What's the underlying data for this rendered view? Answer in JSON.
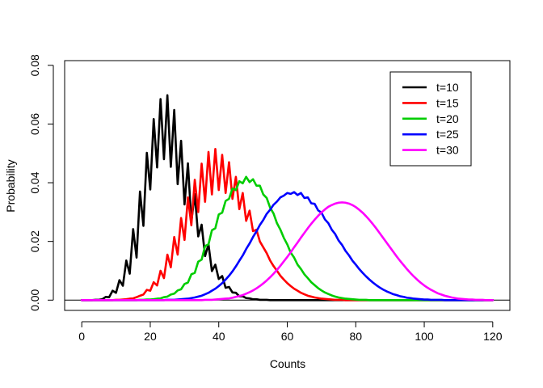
{
  "chart_data": {
    "type": "line",
    "title": "",
    "xlabel": "Counts",
    "ylabel": "Probability",
    "xlim": [
      -5,
      125
    ],
    "ylim": [
      -0.0035,
      0.0816
    ],
    "xticks": [
      0,
      20,
      40,
      60,
      80,
      100,
      120
    ],
    "yticks": [
      0.0,
      0.02,
      0.04,
      0.06,
      0.08
    ],
    "xtick_labels": [
      "0",
      "20",
      "40",
      "60",
      "80",
      "100",
      "120"
    ],
    "ytick_labels": [
      "0.00",
      "0.02",
      "0.04",
      "0.06",
      "0.08"
    ],
    "grid": false,
    "legend_position": "top-right",
    "hline_y": 0,
    "series": [
      {
        "name": "t=10",
        "color": "#000000",
        "x": [
          0,
          1,
          2,
          3,
          4,
          5,
          6,
          7,
          8,
          9,
          10,
          11,
          12,
          13,
          14,
          15,
          16,
          17,
          18,
          19,
          20,
          21,
          22,
          23,
          24,
          25,
          26,
          27,
          28,
          29,
          30,
          31,
          32,
          33,
          34,
          35,
          36,
          37,
          38,
          39,
          40,
          41,
          42,
          43,
          44,
          45,
          46,
          47,
          48,
          49,
          50,
          51,
          52,
          53,
          54,
          55,
          56,
          57,
          58,
          59,
          60,
          61,
          62,
          63,
          64,
          65,
          66,
          67,
          68,
          69,
          70,
          71,
          72,
          73,
          74,
          75,
          76,
          77,
          78,
          79,
          80,
          81,
          82,
          83,
          84,
          85,
          86,
          87,
          88,
          89,
          90,
          91,
          92,
          93,
          94,
          95,
          96,
          97,
          98,
          99,
          100,
          101,
          102,
          103,
          104,
          105,
          106,
          107,
          108,
          109,
          110,
          111,
          112,
          113,
          114,
          115,
          116,
          117,
          118,
          119,
          120
        ],
        "y": [
          0.0,
          0.0,
          0.0,
          0.0,
          0.0001,
          0.0001,
          0.0003,
          0.0011,
          0.001,
          0.0032,
          0.0025,
          0.0068,
          0.0049,
          0.0135,
          0.009,
          0.0242,
          0.0145,
          0.037,
          0.0253,
          0.0502,
          0.0377,
          0.0617,
          0.0452,
          0.0685,
          0.048,
          0.0698,
          0.0454,
          0.0648,
          0.0395,
          0.0543,
          0.0326,
          0.0466,
          0.0268,
          0.0361,
          0.0217,
          0.0257,
          0.015,
          0.019,
          0.0099,
          0.0121,
          0.0072,
          0.0082,
          0.0042,
          0.0045,
          0.0026,
          0.0025,
          0.0013,
          0.0013,
          0.0007,
          0.0006,
          0.0003,
          0.0003,
          0.0001,
          0.0001,
          0.0001,
          0.0,
          0.0,
          0.0,
          0.0,
          0.0,
          0.0,
          0.0,
          0.0,
          0.0,
          0.0,
          0.0,
          0.0,
          0.0,
          0.0,
          0.0,
          0.0,
          0.0,
          0.0,
          0.0,
          0.0,
          0.0,
          0.0,
          0.0,
          0.0,
          0.0,
          0.0,
          0.0,
          0.0,
          0.0,
          0.0,
          0.0,
          0.0,
          0.0,
          0.0,
          0.0,
          0.0,
          0.0,
          0.0,
          0.0,
          0.0,
          0.0,
          0.0,
          0.0,
          0.0,
          0.0,
          0.0,
          0.0,
          0.0,
          0.0,
          0.0,
          0.0,
          0.0,
          0.0,
          0.0,
          0.0,
          0.0,
          0.0,
          0.0,
          0.0,
          0.0,
          0.0,
          0.0,
          0.0,
          0.0,
          0.0,
          0.0
        ]
      },
      {
        "name": "t=15",
        "color": "#ff0000",
        "x": [
          0,
          1,
          2,
          3,
          4,
          5,
          6,
          7,
          8,
          9,
          10,
          11,
          12,
          13,
          14,
          15,
          16,
          17,
          18,
          19,
          20,
          21,
          22,
          23,
          24,
          25,
          26,
          27,
          28,
          29,
          30,
          31,
          32,
          33,
          34,
          35,
          36,
          37,
          38,
          39,
          40,
          41,
          42,
          43,
          44,
          45,
          46,
          47,
          48,
          49,
          50,
          51,
          52,
          53,
          54,
          55,
          56,
          57,
          58,
          59,
          60,
          61,
          62,
          63,
          64,
          65,
          66,
          67,
          68,
          69,
          70,
          71,
          72,
          73,
          74,
          75,
          76,
          77,
          78,
          79,
          80,
          81,
          82,
          83,
          84,
          85,
          86,
          87,
          88,
          89,
          90,
          91,
          92,
          93,
          94,
          95,
          96,
          97,
          98,
          99,
          100,
          101,
          102,
          103,
          104,
          105,
          106,
          107,
          108,
          109,
          110,
          111,
          112,
          113,
          114,
          115,
          116,
          117,
          118,
          119,
          120
        ],
        "y": [
          0.0,
          0.0,
          0.0,
          0.0,
          0.0,
          0.0,
          0.0,
          0.0,
          0.0,
          0.0,
          0.0001,
          0.0001,
          0.0002,
          0.0003,
          0.0005,
          0.0006,
          0.001,
          0.0015,
          0.0019,
          0.0035,
          0.0032,
          0.0061,
          0.005,
          0.01,
          0.0075,
          0.0155,
          0.0112,
          0.0215,
          0.0155,
          0.028,
          0.0205,
          0.035,
          0.0255,
          0.041,
          0.03,
          0.0465,
          0.0335,
          0.0505,
          0.036,
          0.0515,
          0.0375,
          0.0495,
          0.0365,
          0.047,
          0.0345,
          0.042,
          0.031,
          0.0365,
          0.027,
          0.0305,
          0.0235,
          0.024,
          0.02,
          0.018,
          0.016,
          0.0135,
          0.0116,
          0.01,
          0.0083,
          0.007,
          0.0058,
          0.0048,
          0.0039,
          0.0032,
          0.0025,
          0.002,
          0.0015,
          0.0012,
          0.0009,
          0.0007,
          0.0005,
          0.0004,
          0.0003,
          0.0002,
          0.0001,
          0.0001,
          0.0001,
          0.0,
          0.0,
          0.0,
          0.0,
          0.0,
          0.0,
          0.0,
          0.0,
          0.0,
          0.0,
          0.0,
          0.0,
          0.0,
          0.0,
          0.0,
          0.0,
          0.0,
          0.0,
          0.0,
          0.0,
          0.0,
          0.0,
          0.0,
          0.0,
          0.0,
          0.0,
          0.0,
          0.0,
          0.0,
          0.0,
          0.0,
          0.0,
          0.0,
          0.0,
          0.0,
          0.0,
          0.0,
          0.0,
          0.0,
          0.0,
          0.0,
          0.0,
          0.0,
          0.0
        ]
      },
      {
        "name": "t=20",
        "color": "#00cd00",
        "x": [
          0,
          1,
          2,
          3,
          4,
          5,
          6,
          7,
          8,
          9,
          10,
          11,
          12,
          13,
          14,
          15,
          16,
          17,
          18,
          19,
          20,
          21,
          22,
          23,
          24,
          25,
          26,
          27,
          28,
          29,
          30,
          31,
          32,
          33,
          34,
          35,
          36,
          37,
          38,
          39,
          40,
          41,
          42,
          43,
          44,
          45,
          46,
          47,
          48,
          49,
          50,
          51,
          52,
          53,
          54,
          55,
          56,
          57,
          58,
          59,
          60,
          61,
          62,
          63,
          64,
          65,
          66,
          67,
          68,
          69,
          70,
          71,
          72,
          73,
          74,
          75,
          76,
          77,
          78,
          79,
          80,
          81,
          82,
          83,
          84,
          85,
          86,
          87,
          88,
          89,
          90,
          91,
          92,
          93,
          94,
          95,
          96,
          97,
          98,
          99,
          100,
          101,
          102,
          103,
          104,
          105,
          106,
          107,
          108,
          109,
          110,
          111,
          112,
          113,
          114,
          115,
          116,
          117,
          118,
          119,
          120
        ],
        "y": [
          0.0,
          0.0,
          0.0,
          0.0,
          0.0,
          0.0,
          0.0,
          0.0,
          0.0,
          0.0,
          0.0,
          0.0,
          0.0,
          0.0,
          0.0,
          0.0,
          0.0,
          0.0001,
          0.0001,
          0.0002,
          0.0002,
          0.0003,
          0.0005,
          0.0006,
          0.001,
          0.0012,
          0.0019,
          0.0022,
          0.0033,
          0.0037,
          0.0055,
          0.006,
          0.0088,
          0.0093,
          0.0131,
          0.0138,
          0.0184,
          0.019,
          0.0238,
          0.0245,
          0.0292,
          0.0298,
          0.0338,
          0.0345,
          0.038,
          0.0375,
          0.0405,
          0.0398,
          0.042,
          0.0402,
          0.0412,
          0.039,
          0.039,
          0.036,
          0.0348,
          0.0315,
          0.0295,
          0.0262,
          0.024,
          0.0212,
          0.019,
          0.0162,
          0.0145,
          0.0121,
          0.0106,
          0.0088,
          0.0075,
          0.0061,
          0.0051,
          0.0041,
          0.0033,
          0.0026,
          0.0021,
          0.0016,
          0.0012,
          0.0009,
          0.0007,
          0.0005,
          0.0004,
          0.0003,
          0.0002,
          0.0001,
          0.0001,
          0.0001,
          0.0,
          0.0,
          0.0,
          0.0,
          0.0,
          0.0,
          0.0,
          0.0,
          0.0,
          0.0,
          0.0,
          0.0,
          0.0,
          0.0,
          0.0,
          0.0,
          0.0,
          0.0,
          0.0,
          0.0,
          0.0,
          0.0,
          0.0,
          0.0,
          0.0,
          0.0,
          0.0,
          0.0,
          0.0,
          0.0,
          0.0,
          0.0,
          0.0,
          0.0,
          0.0,
          0.0,
          0.0
        ]
      },
      {
        "name": "t=25",
        "color": "#0000ff",
        "x": [
          0,
          1,
          2,
          3,
          4,
          5,
          6,
          7,
          8,
          9,
          10,
          11,
          12,
          13,
          14,
          15,
          16,
          17,
          18,
          19,
          20,
          21,
          22,
          23,
          24,
          25,
          26,
          27,
          28,
          29,
          30,
          31,
          32,
          33,
          34,
          35,
          36,
          37,
          38,
          39,
          40,
          41,
          42,
          43,
          44,
          45,
          46,
          47,
          48,
          49,
          50,
          51,
          52,
          53,
          54,
          55,
          56,
          57,
          58,
          59,
          60,
          61,
          62,
          63,
          64,
          65,
          66,
          67,
          68,
          69,
          70,
          71,
          72,
          73,
          74,
          75,
          76,
          77,
          78,
          79,
          80,
          81,
          82,
          83,
          84,
          85,
          86,
          87,
          88,
          89,
          90,
          91,
          92,
          93,
          94,
          95,
          96,
          97,
          98,
          99,
          100,
          101,
          102,
          103,
          104,
          105,
          106,
          107,
          108,
          109,
          110,
          111,
          112,
          113,
          114,
          115,
          116,
          117,
          118,
          119,
          120
        ],
        "y": [
          0.0,
          0.0,
          0.0,
          0.0,
          0.0,
          0.0,
          0.0,
          0.0,
          0.0,
          0.0,
          0.0,
          0.0,
          0.0,
          0.0,
          0.0,
          0.0,
          0.0,
          0.0,
          0.0,
          0.0,
          0.0,
          0.0,
          0.0,
          0.0,
          0.0,
          0.0001,
          0.0001,
          0.0001,
          0.0002,
          0.0003,
          0.0004,
          0.0005,
          0.0007,
          0.0009,
          0.0012,
          0.0015,
          0.002,
          0.0025,
          0.0032,
          0.0039,
          0.0048,
          0.0058,
          0.007,
          0.0083,
          0.0098,
          0.0115,
          0.0134,
          0.0152,
          0.0174,
          0.0193,
          0.0215,
          0.0234,
          0.0256,
          0.0273,
          0.0294,
          0.0308,
          0.0325,
          0.0336,
          0.035,
          0.0356,
          0.0365,
          0.0362,
          0.0368,
          0.0358,
          0.0365,
          0.0348,
          0.035,
          0.033,
          0.0328,
          0.0306,
          0.0298,
          0.0275,
          0.0262,
          0.024,
          0.0225,
          0.0203,
          0.0188,
          0.0168,
          0.0153,
          0.0135,
          0.0121,
          0.0106,
          0.0093,
          0.0081,
          0.007,
          0.006,
          0.0051,
          0.0043,
          0.0036,
          0.003,
          0.0025,
          0.002,
          0.0017,
          0.0013,
          0.0011,
          0.0008,
          0.0007,
          0.0005,
          0.0004,
          0.0003,
          0.0002,
          0.0002,
          0.0001,
          0.0001,
          0.0001,
          0.0001,
          0.0,
          0.0,
          0.0,
          0.0,
          0.0,
          0.0,
          0.0,
          0.0,
          0.0,
          0.0,
          0.0,
          0.0,
          0.0,
          0.0,
          0.0
        ]
      },
      {
        "name": "t=30",
        "color": "#ff00ff",
        "x": [
          0,
          1,
          2,
          3,
          4,
          5,
          6,
          7,
          8,
          9,
          10,
          11,
          12,
          13,
          14,
          15,
          16,
          17,
          18,
          19,
          20,
          21,
          22,
          23,
          24,
          25,
          26,
          27,
          28,
          29,
          30,
          31,
          32,
          33,
          34,
          35,
          36,
          37,
          38,
          39,
          40,
          41,
          42,
          43,
          44,
          45,
          46,
          47,
          48,
          49,
          50,
          51,
          52,
          53,
          54,
          55,
          56,
          57,
          58,
          59,
          60,
          61,
          62,
          63,
          64,
          65,
          66,
          67,
          68,
          69,
          70,
          71,
          72,
          73,
          74,
          75,
          76,
          77,
          78,
          79,
          80,
          81,
          82,
          83,
          84,
          85,
          86,
          87,
          88,
          89,
          90,
          91,
          92,
          93,
          94,
          95,
          96,
          97,
          98,
          99,
          100,
          101,
          102,
          103,
          104,
          105,
          106,
          107,
          108,
          109,
          110,
          111,
          112,
          113,
          114,
          115,
          116,
          117,
          118,
          119,
          120
        ],
        "y": [
          0.0,
          0.0,
          0.0,
          0.0,
          0.0,
          0.0,
          0.0,
          0.0,
          0.0,
          0.0,
          0.0,
          0.0,
          0.0,
          0.0,
          0.0,
          0.0,
          0.0,
          0.0,
          0.0,
          0.0,
          0.0,
          0.0,
          0.0,
          0.0,
          0.0,
          0.0,
          0.0,
          0.0,
          0.0,
          0.0,
          0.0,
          0.0,
          0.0,
          0.0,
          0.0,
          0.0,
          0.0001,
          0.0001,
          0.0001,
          0.0002,
          0.0003,
          0.0004,
          0.0005,
          0.0006,
          0.0008,
          0.0011,
          0.0014,
          0.0017,
          0.0022,
          0.0027,
          0.0033,
          0.004,
          0.0048,
          0.0057,
          0.0067,
          0.0078,
          0.009,
          0.0103,
          0.0117,
          0.0132,
          0.0147,
          0.0163,
          0.018,
          0.0196,
          0.0213,
          0.0229,
          0.0245,
          0.026,
          0.0274,
          0.0287,
          0.0299,
          0.0309,
          0.0318,
          0.0324,
          0.0329,
          0.0332,
          0.0333,
          0.0332,
          0.0329,
          0.0324,
          0.0317,
          0.0308,
          0.0298,
          0.0286,
          0.0273,
          0.0259,
          0.0244,
          0.0228,
          0.0212,
          0.0196,
          0.018,
          0.0164,
          0.0148,
          0.0133,
          0.0119,
          0.0105,
          0.0092,
          0.008,
          0.0069,
          0.0059,
          0.005,
          0.0042,
          0.0035,
          0.0029,
          0.0023,
          0.0019,
          0.0015,
          0.0012,
          0.0009,
          0.0007,
          0.0005,
          0.0004,
          0.0003,
          0.0002,
          0.0002,
          0.0001,
          0.0001,
          0.0001,
          0.0,
          0.0,
          0.0
        ]
      }
    ]
  }
}
